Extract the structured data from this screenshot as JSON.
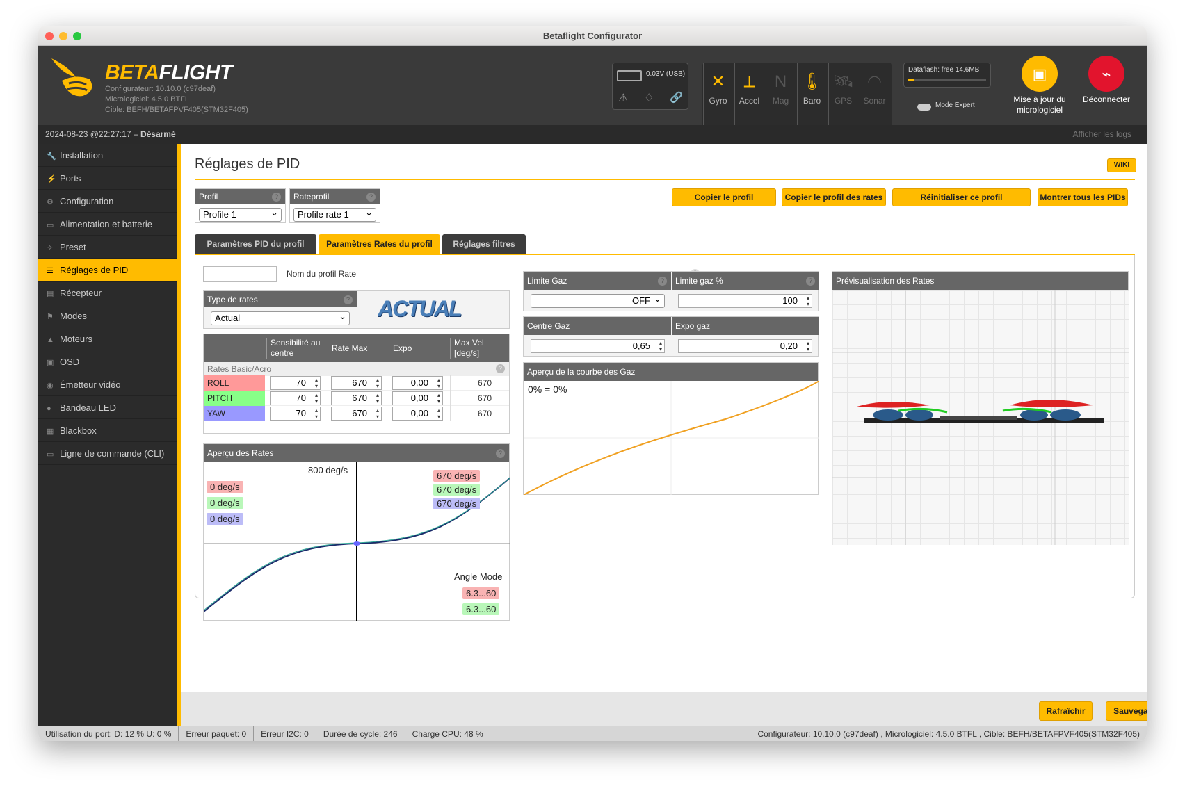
{
  "window": {
    "title": "Betaflight Configurator"
  },
  "header": {
    "logo": "BETAFLIGHT",
    "logo_a": "BETA",
    "logo_b": "FLIGHT",
    "configurator": "Configurateur: 10.10.0 (c97deaf)",
    "firmware": "Micrologiciel: 4.5.0 BTFL",
    "target": "Cible: BEFH/BETAFPVF405(STM32F405)",
    "battery": "0.03V (USB)",
    "sensors": [
      "Gyro",
      "Accel",
      "Mag",
      "Baro",
      "GPS",
      "Sonar"
    ],
    "dataflash": "Dataflash: free 14.6MB",
    "expert": "Mode Expert",
    "update": "Mise à jour du micrologiciel",
    "disconnect": "Déconnecter"
  },
  "statusbar": {
    "datetime": "2024-08-23 @22:27:17 – ",
    "armed": "Désarmé",
    "logs": "Afficher les logs"
  },
  "sidebar": [
    "Installation",
    "Ports",
    "Configuration",
    "Alimentation et batterie",
    "Preset",
    "Réglages de PID",
    "Récepteur",
    "Modes",
    "Moteurs",
    "OSD",
    "Émetteur vidéo",
    "Bandeau LED",
    "Blackbox",
    "Ligne de commande (CLI)"
  ],
  "page": {
    "title": "Réglages de PID",
    "wiki": "WIKI",
    "profil_label": "Profil",
    "profil_value": "Profile 1",
    "rateprofil_label": "Rateprofil",
    "rateprofil_value": "Profile rate 1",
    "btn_copy": "Copier le profil",
    "btn_copy_rates": "Copier le profil des rates",
    "btn_reset": "Réinitialiser ce profil",
    "btn_show": "Montrer tous les PIDs",
    "tabs": [
      "Paramètres PID du profil",
      "Paramètres Rates du profil",
      "Réglages filtres"
    ],
    "rate_name_label": "Nom du profil Rate",
    "rate_type_label": "Type de rates",
    "rate_type_value": "Actual",
    "rate_type_logo": "ACTUAL",
    "cols": [
      "Sensibilité au centre",
      "Rate Max",
      "Expo",
      "Max Vel [deg/s]"
    ],
    "section": "Rates Basic/Acro",
    "rows": [
      {
        "axis": "ROLL",
        "center": "70",
        "max": "670",
        "expo": "0,00",
        "vel": "670",
        "color": "#f99"
      },
      {
        "axis": "PITCH",
        "center": "70",
        "max": "670",
        "expo": "0,00",
        "vel": "670",
        "color": "#8f8"
      },
      {
        "axis": "YAW",
        "center": "70",
        "max": "670",
        "expo": "0,00",
        "vel": "670",
        "color": "#99f"
      }
    ],
    "preview_title": "Aperçu des Rates",
    "preview_top": "800 deg/s",
    "preview_left": [
      "0 deg/s",
      "0 deg/s",
      "0 deg/s"
    ],
    "preview_right": [
      "670 deg/s",
      "670 deg/s",
      "670 deg/s"
    ],
    "angle_mode": "Angle Mode",
    "angle_vals": [
      "6.3...60",
      "6.3...60"
    ],
    "throttle_limit": "Limite Gaz",
    "throttle_limit_val": "OFF",
    "throttle_limit_pct": "Limite gaz %",
    "throttle_limit_pct_val": "100",
    "throttle_mid": "Centre Gaz",
    "throttle_mid_val": "0,65",
    "throttle_expo": "Expo gaz",
    "throttle_expo_val": "0,20",
    "throttle_curve": "Aperçu de la courbe des Gaz",
    "throttle_curve_val": "0% = 0%",
    "rates_preview": "Prévisualisation des Rates",
    "btn_refresh": "Rafraîchir",
    "btn_save": "Sauvegarder"
  },
  "bottom": [
    "Utilisation du port: D: 12 % U: 0 %",
    "Erreur paquet: 0",
    "Erreur I2C: 0",
    "Durée de cycle: 246",
    "Charge CPU: 48 %"
  ],
  "bottom_right": "Configurateur: 10.10.0 (c97deaf) , Micrologiciel: 4.5.0 BTFL , Cible: BEFH/BETAFPVF405(STM32F405)"
}
